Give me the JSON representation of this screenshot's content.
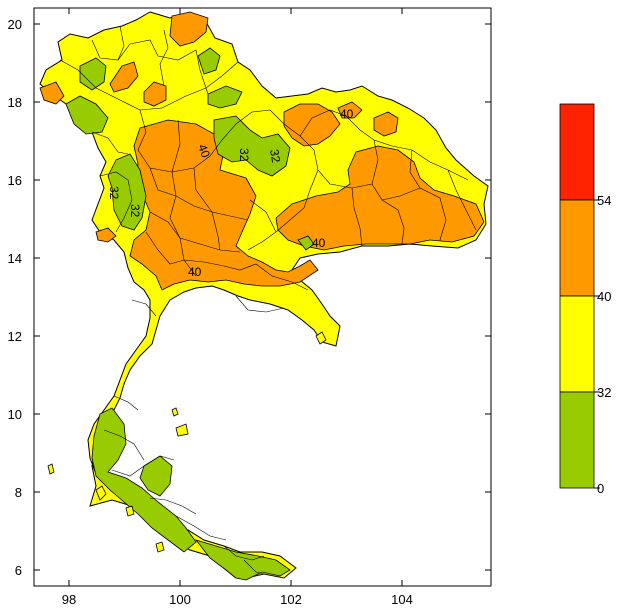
{
  "map": {
    "x_ticks": [
      "98",
      "100",
      "102",
      "104"
    ],
    "y_ticks": [
      "6",
      "8",
      "10",
      "12",
      "14",
      "16",
      "18",
      "20"
    ],
    "contour_labels": [
      "40",
      "40",
      "40",
      "40",
      "32",
      "32",
      "32",
      "32"
    ]
  },
  "legend": {
    "bands": [
      {
        "from": "0",
        "to": "32",
        "color": "#99cc00"
      },
      {
        "from": "32",
        "to": "40",
        "color": "#ffff00"
      },
      {
        "from": "40",
        "to": "54",
        "color": "#ff9900"
      },
      {
        "from": "54",
        "to": "",
        "color": "#ff2200"
      }
    ],
    "labels": [
      "0",
      "32",
      "40",
      "54"
    ]
  },
  "colors": {
    "green": "#99cc00",
    "yellow": "#ffff00",
    "orange": "#ff9900",
    "red": "#ff2200"
  }
}
